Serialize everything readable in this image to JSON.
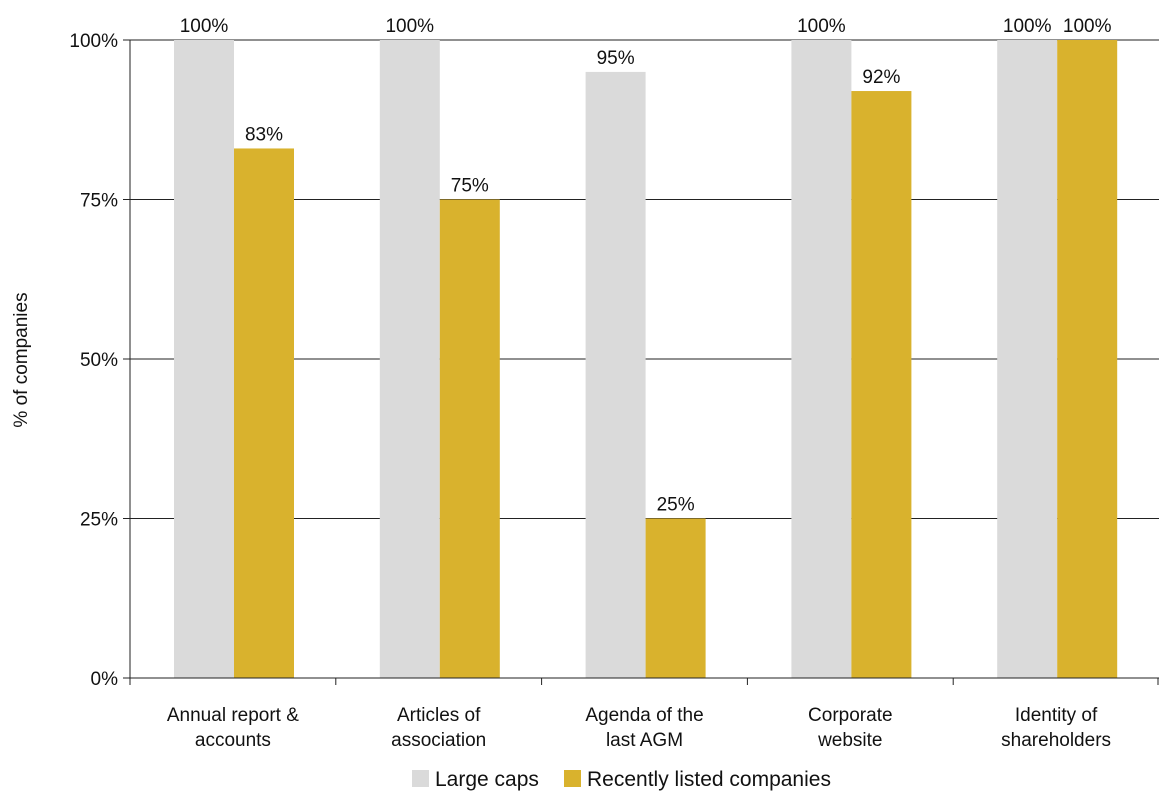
{
  "chart_data": {
    "type": "bar",
    "categories": [
      [
        "Annual report &",
        "accounts"
      ],
      [
        "Articles of",
        "association"
      ],
      [
        "Agenda of the",
        "last AGM"
      ],
      [
        "Corporate",
        "website"
      ],
      [
        "Identity of",
        "shareholders"
      ]
    ],
    "series": [
      {
        "name": "Large caps",
        "color": "#dadada",
        "values": [
          100,
          100,
          95,
          100,
          100
        ],
        "labels": [
          "100%",
          "100%",
          "95%",
          "100%",
          "100%"
        ]
      },
      {
        "name": "Recently listed companies",
        "color": "#d9b22d",
        "values": [
          83,
          75,
          25,
          92,
          100
        ],
        "labels": [
          "83%",
          "75%",
          "25%",
          "92%",
          "100%"
        ]
      }
    ],
    "ylabel": "% of companies",
    "ylim": [
      0,
      100
    ],
    "yticks": [
      0,
      25,
      50,
      75,
      100
    ],
    "ytick_labels": [
      "0%",
      "25%",
      "50%",
      "75%",
      "100%"
    ],
    "grid": true,
    "legend_position": "bottom-center"
  }
}
